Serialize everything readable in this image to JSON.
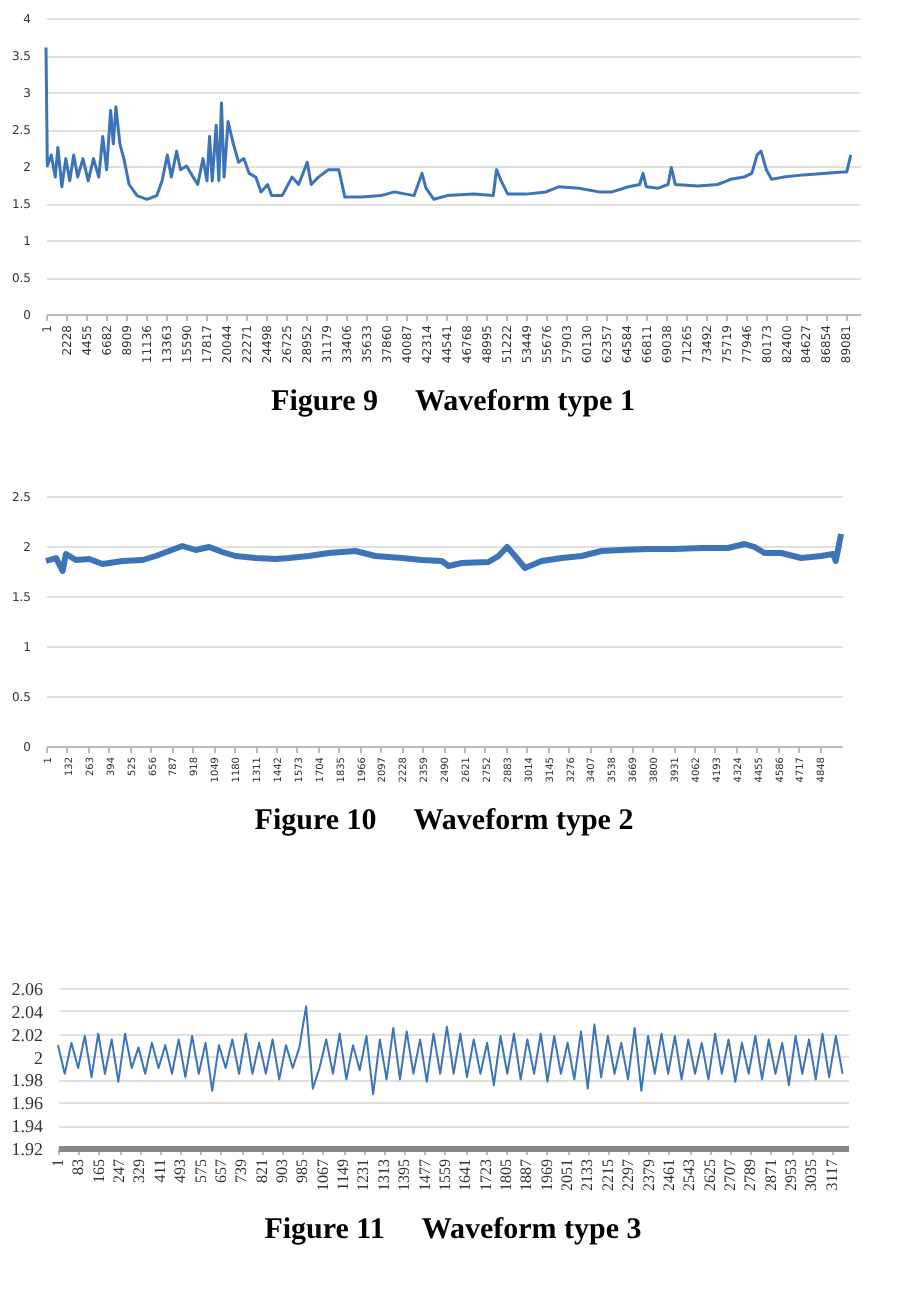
{
  "chart_data": [
    {
      "type": "line",
      "title": "Figure 9     Waveform type 1",
      "grid": "y",
      "xlim": [
        1,
        90700
      ],
      "ylim": [
        0,
        4
      ],
      "yticks": [
        0,
        0.5,
        1,
        1.5,
        2,
        2.5,
        3,
        3.5,
        4
      ],
      "xticks": [
        1,
        2228,
        4455,
        6682,
        8909,
        11136,
        13363,
        15590,
        17817,
        20044,
        22271,
        24498,
        26725,
        28952,
        31179,
        33406,
        35633,
        37860,
        40087,
        42314,
        44541,
        46768,
        48995,
        51222,
        53449,
        55676,
        57903,
        60130,
        62357,
        64584,
        66811,
        69038,
        71265,
        73492,
        75719,
        77946,
        80173,
        82400,
        84627,
        86854,
        89081
      ],
      "x": [
        1,
        148,
        589,
        1030,
        1324,
        1765,
        2206,
        2647,
        3088,
        3529,
        4117,
        4705,
        5293,
        5881,
        6322,
        6763,
        7204,
        7498,
        7792,
        8233,
        8674,
        9262,
        10144,
        11247,
        12349,
        12937,
        13525,
        13966,
        14554,
        14995,
        15657,
        16392,
        16906,
        17494,
        17935,
        18229,
        18523,
        18964,
        19258,
        19552,
        19846,
        20287,
        20875,
        21463,
        22051,
        22639,
        23374,
        23962,
        24697,
        25138,
        26314,
        27417,
        28152,
        29107,
        29548,
        30357,
        31459,
        32635,
        33297,
        35134,
        37339,
        38809,
        41014,
        41896,
        42337,
        43219,
        44689,
        47629,
        49834,
        50202,
        50716,
        51451,
        53509,
        55714,
        57184,
        59389,
        61594,
        63064,
        64902,
        66151,
        66519,
        66886,
        68209,
        69312,
        69679,
        70120,
        72619,
        74824,
        76294,
        77764,
        78646,
        79234,
        79675,
        80263,
        80851,
        82174,
        84379,
        86584,
        88789,
        89230,
        89671
      ],
      "series": [
        {
          "color": "#3d74b8",
          "values": [
            3.6,
            2.0,
            2.15,
            1.85,
            2.25,
            1.72,
            2.1,
            1.8,
            2.15,
            1.85,
            2.1,
            1.8,
            2.1,
            1.85,
            2.4,
            1.95,
            2.75,
            2.3,
            2.8,
            2.3,
            2.1,
            1.75,
            1.6,
            1.55,
            1.6,
            1.8,
            2.15,
            1.85,
            2.2,
            1.95,
            2.0,
            1.85,
            1.75,
            2.1,
            1.8,
            2.4,
            1.8,
            2.55,
            1.8,
            2.85,
            1.85,
            2.6,
            2.3,
            2.05,
            2.1,
            1.9,
            1.85,
            1.65,
            1.75,
            1.6,
            1.6,
            1.85,
            1.75,
            2.05,
            1.75,
            1.85,
            1.95,
            1.95,
            1.58,
            1.58,
            1.6,
            1.65,
            1.6,
            1.9,
            1.7,
            1.55,
            1.6,
            1.62,
            1.6,
            1.95,
            1.8,
            1.62,
            1.62,
            1.65,
            1.72,
            1.7,
            1.65,
            1.65,
            1.72,
            1.75,
            1.9,
            1.72,
            1.7,
            1.75,
            1.98,
            1.75,
            1.73,
            1.75,
            1.82,
            1.85,
            1.9,
            2.15,
            2.2,
            1.95,
            1.82,
            1.85,
            1.88,
            1.9,
            1.92,
            1.92,
            2.15
          ]
        }
      ]
    },
    {
      "type": "line",
      "title": "Figure 10     Waveform type 2",
      "grid": "y",
      "xlim": [
        1,
        4990
      ],
      "ylim": [
        0,
        2.5
      ],
      "yticks": [
        0,
        0.5,
        1,
        1.5,
        2,
        2.5
      ],
      "xticks": [
        1,
        132,
        263,
        394,
        525,
        656,
        787,
        918,
        1049,
        1180,
        1311,
        1442,
        1573,
        1704,
        1835,
        1966,
        2097,
        2228,
        2359,
        2490,
        2621,
        2752,
        2883,
        3014,
        3145,
        3276,
        3407,
        3538,
        3669,
        3800,
        3931,
        4062,
        4193,
        4324,
        4455,
        4586,
        4717,
        4848
      ],
      "x": [
        1,
        64,
        105,
        126,
        189,
        272,
        355,
        481,
        606,
        689,
        772,
        856,
        939,
        1023,
        1106,
        1189,
        1315,
        1440,
        1523,
        1648,
        1773,
        1940,
        2065,
        2232,
        2357,
        2482,
        2524,
        2607,
        2774,
        2837,
        2891,
        2941,
        3003,
        3108,
        3233,
        3358,
        3483,
        3608,
        3775,
        3942,
        4108,
        4275,
        4380,
        4442,
        4505,
        4609,
        4734,
        4859,
        4934,
        4951,
        4984
      ],
      "series": [
        {
          "color": "#3d74b8",
          "values": [
            1.85,
            1.88,
            1.75,
            1.92,
            1.86,
            1.87,
            1.82,
            1.85,
            1.86,
            1.9,
            1.95,
            2.0,
            1.96,
            1.99,
            1.94,
            1.9,
            1.88,
            1.87,
            1.88,
            1.9,
            1.93,
            1.95,
            1.9,
            1.88,
            1.86,
            1.85,
            1.8,
            1.83,
            1.84,
            1.9,
            1.99,
            1.9,
            1.78,
            1.85,
            1.88,
            1.9,
            1.95,
            1.96,
            1.97,
            1.97,
            1.98,
            1.98,
            2.02,
            1.99,
            1.93,
            1.93,
            1.88,
            1.9,
            1.92,
            1.85,
            2.12
          ]
        }
      ]
    },
    {
      "type": "line",
      "title": "Figure 11     Waveform type 3",
      "grid": "y",
      "xlim": [
        1,
        3182
      ],
      "ylim": [
        1.92,
        2.06
      ],
      "yticks": [
        1.92,
        1.94,
        1.96,
        1.98,
        2,
        2.02,
        2.04,
        2.06
      ],
      "xticks": [
        1,
        83,
        165,
        247,
        329,
        411,
        493,
        575,
        657,
        739,
        821,
        903,
        985,
        1067,
        1149,
        1231,
        1313,
        1395,
        1477,
        1559,
        1641,
        1723,
        1805,
        1887,
        1969,
        2051,
        2133,
        2215,
        2297,
        2379,
        2461,
        2543,
        2625,
        2707,
        2789,
        2871,
        2953,
        3035,
        3117
      ],
      "x": [
        1,
        28,
        55,
        82,
        109,
        136,
        163,
        190,
        217,
        244,
        271,
        298,
        325,
        352,
        379,
        406,
        433,
        460,
        487,
        514,
        541,
        568,
        595,
        622,
        649,
        676,
        703,
        730,
        757,
        784,
        811,
        838,
        865,
        892,
        919,
        946,
        973,
        1000,
        1027,
        1054,
        1081,
        1108,
        1135,
        1162,
        1189,
        1216,
        1243,
        1270,
        1297,
        1324,
        1351,
        1378,
        1405,
        1432,
        1459,
        1486,
        1513,
        1540,
        1567,
        1594,
        1621,
        1648,
        1675,
        1702,
        1729,
        1756,
        1783,
        1810,
        1837,
        1864,
        1891,
        1918,
        1945,
        1972,
        1999,
        2026,
        2053,
        2080,
        2107,
        2134,
        2161,
        2188,
        2215,
        2242,
        2269,
        2296,
        2323,
        2350,
        2377,
        2404,
        2431,
        2458,
        2485,
        2512,
        2539,
        2566,
        2593,
        2620,
        2647,
        2674,
        2701,
        2728,
        2755,
        2782,
        2809,
        2836,
        2863,
        2890,
        2917,
        2944,
        2971,
        2998,
        3025,
        3052,
        3079,
        3106,
        3133,
        3160
      ],
      "series": [
        {
          "color": "#3d74b8",
          "values": [
            2.01,
            1.985,
            2.012,
            1.99,
            2.018,
            1.982,
            2.02,
            1.985,
            2.015,
            1.978,
            2.02,
            1.99,
            2.008,
            1.985,
            2.012,
            1.99,
            2.01,
            1.985,
            2.015,
            1.982,
            2.018,
            1.985,
            2.012,
            1.97,
            2.01,
            1.99,
            2.015,
            1.985,
            2.02,
            1.985,
            2.012,
            1.985,
            2.015,
            1.98,
            2.01,
            1.99,
            2.008,
            2.044,
            1.972,
            1.99,
            2.015,
            1.985,
            2.02,
            1.98,
            2.01,
            1.988,
            2.018,
            1.967,
            2.015,
            1.98,
            2.025,
            1.98,
            2.022,
            1.985,
            2.015,
            1.978,
            2.02,
            1.985,
            2.026,
            1.985,
            2.02,
            1.982,
            2.015,
            1.985,
            2.012,
            1.975,
            2.018,
            1.985,
            2.02,
            1.98,
            2.015,
            1.985,
            2.02,
            1.978,
            2.018,
            1.985,
            2.012,
            1.98,
            2.022,
            1.972,
            2.028,
            1.982,
            2.018,
            1.985,
            2.012,
            1.98,
            2.025,
            1.97,
            2.018,
            1.985,
            2.02,
            1.985,
            2.018,
            1.98,
            2.015,
            1.985,
            2.012,
            1.98,
            2.02,
            1.985,
            2.015,
            1.978,
            2.012,
            1.985,
            2.018,
            1.98,
            2.015,
            1.985,
            2.012,
            1.975,
            2.018,
            1.985,
            2.015,
            1.98,
            2.02,
            1.982,
            2.018,
            1.985
          ]
        }
      ]
    }
  ]
}
